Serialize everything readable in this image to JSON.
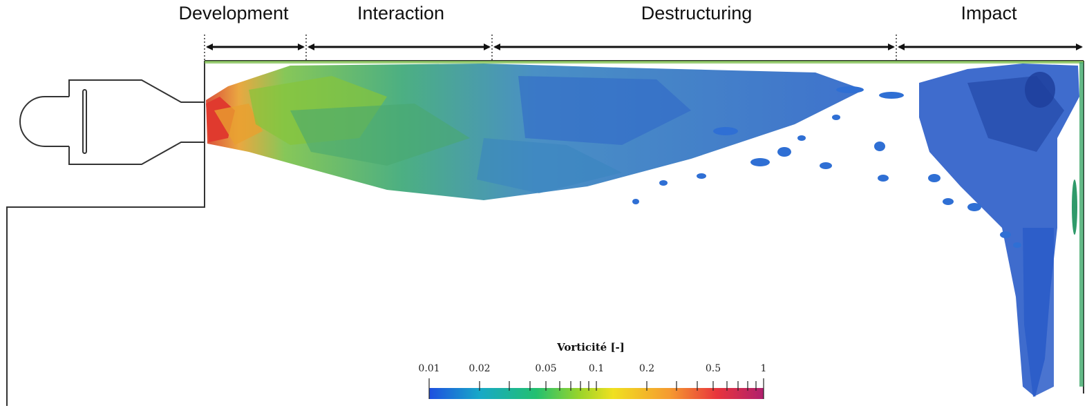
{
  "regions": [
    {
      "label": "Development"
    },
    {
      "label": "Interaction"
    },
    {
      "label": "Destructuring"
    },
    {
      "label": "Impact"
    }
  ],
  "colorbar": {
    "title": "Vorticité [-]",
    "scale": "log",
    "range": [
      0.01,
      1
    ],
    "tick_labels": [
      "0.01",
      "0.02",
      "0.05",
      "0.1",
      "0.2",
      "0.5",
      "1"
    ],
    "tick_values": [
      0.01,
      0.02,
      0.05,
      0.1,
      0.2,
      0.5,
      1
    ],
    "colormap": [
      "#1e4fe0",
      "#18a8c8",
      "#22c070",
      "#9ad42a",
      "#f0e020",
      "#f59a30",
      "#e8343c",
      "#b0206e"
    ]
  },
  "colors": {
    "structure_line": "#333333",
    "arrow": "#111111",
    "vortex_dominant": "#2f6fd4",
    "vortex_core": "#e03a2e"
  }
}
